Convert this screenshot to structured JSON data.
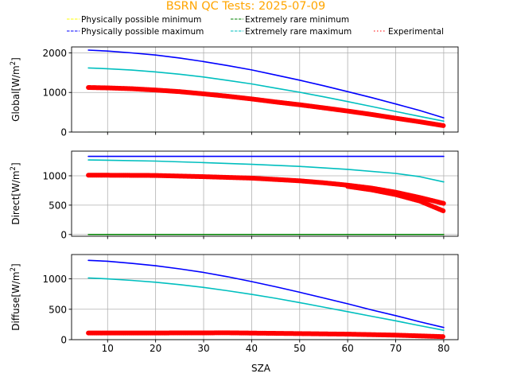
{
  "chart_data": {
    "type": "line",
    "title": "BSRN QC Tests: 2025-07-09",
    "title_color": "#ffa500",
    "xlabel": "SZA",
    "xlim": [
      2.5,
      83
    ],
    "xticks": [
      10,
      20,
      30,
      40,
      50,
      60,
      70,
      80
    ],
    "grid": true,
    "legend": {
      "placement": "top",
      "entries": [
        {
          "label": "Physically possible minimum",
          "color": "#ffff00",
          "style": "dashed"
        },
        {
          "label": "Physically possible maximum",
          "color": "#0000ff",
          "style": "dashed"
        },
        {
          "label": "Extremely rare minimum",
          "color": "#008000",
          "style": "dashed"
        },
        {
          "label": "Extremely rare maximum",
          "color": "#00bfbf",
          "style": "dashed"
        },
        {
          "label": "Experimental",
          "color": "#ff0000",
          "style": "dotted"
        }
      ]
    },
    "panels": [
      {
        "ylabel": "Global[W/m$^2$]",
        "ylabel_main": "Global[W/m",
        "ylabel_sup": "2",
        "ylabel_end": "]",
        "ylim": [
          0,
          2150
        ],
        "yticks": [
          0,
          1000,
          2000
        ],
        "series": [
          {
            "name": "Physically possible minimum",
            "color": "#ffff00",
            "width": 1.5,
            "x": [
              6,
              80
            ],
            "y": [
              -4,
              -4
            ]
          },
          {
            "name": "Extremely rare minimum",
            "color": "#008000",
            "width": 1.5,
            "x": [
              6,
              80
            ],
            "y": [
              -4,
              -4
            ]
          },
          {
            "name": "Physically possible maximum",
            "color": "#0000ff",
            "width": 1.6,
            "x": [
              6,
              10,
              15,
              20,
              25,
              30,
              35,
              40,
              45,
              50,
              55,
              60,
              65,
              70,
              75,
              80
            ],
            "y": [
              2070,
              2045,
              2000,
              1945,
              1870,
              1780,
              1680,
              1570,
              1440,
              1310,
              1170,
              1020,
              870,
              710,
              545,
              360
            ]
          },
          {
            "name": "Extremely rare maximum",
            "color": "#00bfbf",
            "width": 1.6,
            "x": [
              6,
              10,
              15,
              20,
              25,
              30,
              35,
              40,
              45,
              50,
              55,
              60,
              65,
              70,
              75,
              80
            ],
            "y": [
              1620,
              1600,
              1565,
              1520,
              1460,
              1390,
              1305,
              1215,
              1110,
              1005,
              890,
              770,
              645,
              520,
              395,
              275
            ]
          },
          {
            "name": "Experimental",
            "color": "#ff0000",
            "width": 6,
            "x": [
              6,
              10,
              15,
              20,
              25,
              30,
              35,
              40,
              45,
              50,
              55,
              60,
              65,
              70,
              75,
              80
            ],
            "y": [
              1125,
              1115,
              1095,
              1060,
              1020,
              965,
              905,
              835,
              760,
              690,
              610,
              530,
              445,
              350,
              260,
              160
            ]
          }
        ]
      },
      {
        "ylabel": "Direct[W/m$^2$]",
        "ylabel_main": "Direct[W/m",
        "ylabel_sup": "2",
        "ylabel_end": "]",
        "ylim": [
          -30,
          1420
        ],
        "yticks": [
          0,
          500,
          1000
        ],
        "series": [
          {
            "name": "Physically possible minimum",
            "color": "#ffff00",
            "width": 1.5,
            "x": [
              6,
              80
            ],
            "y": [
              0,
              0
            ]
          },
          {
            "name": "Extremely rare minimum",
            "color": "#008000",
            "width": 1.5,
            "x": [
              6,
              80
            ],
            "y": [
              0,
              0
            ]
          },
          {
            "name": "Physically possible maximum",
            "color": "#0000ff",
            "width": 1.6,
            "x": [
              6,
              80
            ],
            "y": [
              1330,
              1330
            ]
          },
          {
            "name": "Extremely rare maximum",
            "color": "#00bfbf",
            "width": 1.6,
            "x": [
              6,
              10,
              20,
              30,
              40,
              50,
              60,
              70,
              75,
              80
            ],
            "y": [
              1270,
              1265,
              1250,
              1225,
              1195,
              1160,
              1110,
              1040,
              985,
              895
            ]
          },
          {
            "name": "Experimental",
            "color": "#ff0000",
            "width": 6,
            "x": [
              6,
              10,
              20,
              30,
              40,
              50,
              55,
              60,
              65,
              70,
              75,
              80
            ],
            "y": [
              1010,
              1010,
              1005,
              985,
              960,
              915,
              880,
              840,
              790,
              720,
              630,
              530
            ]
          },
          {
            "name": "Experimental",
            "color": "#ff0000",
            "width": 6,
            "x": [
              60,
              65,
              70,
              75,
              80
            ],
            "y": [
              820,
              760,
              680,
              570,
              400
            ]
          }
        ]
      },
      {
        "ylabel": "Diffuse[W/m$^2$]",
        "ylabel_main": "Diffuse[W/m",
        "ylabel_sup": "2",
        "ylabel_end": "]",
        "ylim": [
          0,
          1400
        ],
        "yticks": [
          0,
          500,
          1000
        ],
        "series": [
          {
            "name": "Physically possible minimum",
            "color": "#ffff00",
            "width": 1.5,
            "x": [
              6,
              80
            ],
            "y": [
              -2,
              -2
            ]
          },
          {
            "name": "Extremely rare minimum",
            "color": "#008000",
            "width": 1.5,
            "x": [
              6,
              80
            ],
            "y": [
              -2,
              -2
            ]
          },
          {
            "name": "Physically possible maximum",
            "color": "#0000ff",
            "width": 1.6,
            "x": [
              6,
              10,
              15,
              20,
              25,
              30,
              35,
              40,
              45,
              50,
              55,
              60,
              65,
              70,
              75,
              80
            ],
            "y": [
              1305,
              1290,
              1255,
              1215,
              1165,
              1105,
              1035,
              955,
              870,
              780,
              685,
              590,
              490,
              395,
              295,
              200
            ]
          },
          {
            "name": "Extremely rare maximum",
            "color": "#00bfbf",
            "width": 1.6,
            "x": [
              6,
              10,
              15,
              20,
              25,
              30,
              35,
              40,
              45,
              50,
              55,
              60,
              65,
              70,
              75,
              80
            ],
            "y": [
              1015,
              1000,
              975,
              945,
              905,
              860,
              805,
              745,
              680,
              610,
              535,
              460,
              385,
              310,
              230,
              155
            ]
          },
          {
            "name": "Experimental",
            "color": "#ff0000",
            "width": 6,
            "x": [
              6,
              20,
              35,
              50,
              60,
              70,
              80
            ],
            "y": [
              110,
              110,
              112,
              100,
              90,
              75,
              50
            ]
          }
        ]
      }
    ]
  }
}
